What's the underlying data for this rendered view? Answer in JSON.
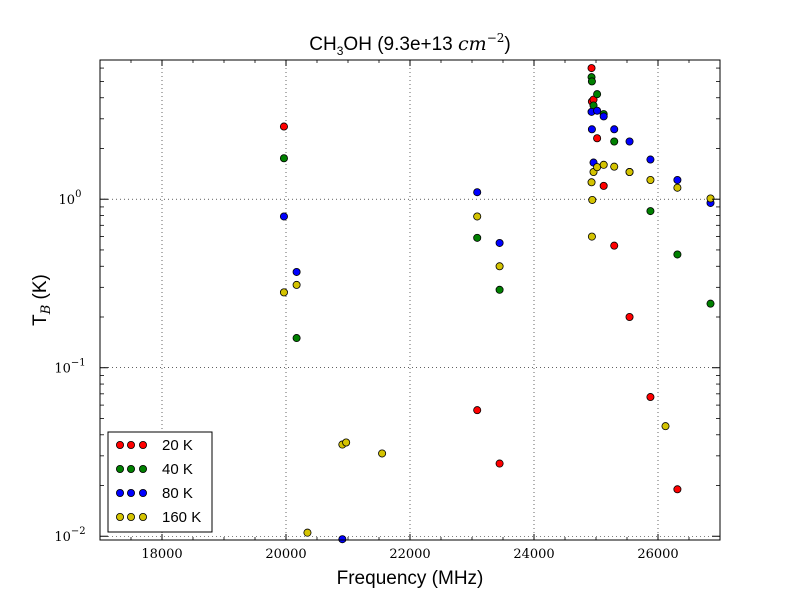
{
  "chart_data": {
    "type": "scatter",
    "title": {
      "species": "CH",
      "sub": "3",
      "rest": "OH (9.3e+13 ",
      "unit": "cm",
      "exp": "−2",
      "close": ")"
    },
    "xlabel": "Frequency (MHz)",
    "ylabel": {
      "main": "T",
      "sub": "B",
      "rest": " (K)"
    },
    "xlim": [
      17000,
      27000
    ],
    "ylim": [
      0.0095,
      6.7
    ],
    "yscale": "log",
    "grid": true,
    "legend_position": "lower-left",
    "x_ticks": [
      18000,
      20000,
      22000,
      24000,
      26000
    ],
    "x_tick_labels": [
      "18000",
      "20000",
      "22000",
      "24000",
      "26000"
    ],
    "y_ticks": [
      0.01,
      0.1,
      1
    ],
    "y_tick_labels": [
      {
        "base": "10",
        "exp": "−2"
      },
      {
        "base": "10",
        "exp": "−1"
      },
      {
        "base": "10",
        "exp": "0"
      }
    ],
    "series": [
      {
        "name": "20 K",
        "color": "#ff0000",
        "points": [
          [
            19967,
            2.7
          ],
          [
            23084,
            0.056
          ],
          [
            23445,
            0.027
          ],
          [
            24928,
            6.0
          ],
          [
            24934,
            3.8
          ],
          [
            24960,
            3.9
          ],
          [
            25018,
            2.3
          ],
          [
            25124,
            1.2
          ],
          [
            25294,
            0.53
          ],
          [
            25541,
            0.2
          ],
          [
            25878,
            0.067
          ],
          [
            26313,
            0.019
          ]
        ]
      },
      {
        "name": "40 K",
        "color": "#008000",
        "points": [
          [
            19967,
            1.75
          ],
          [
            20171,
            0.15
          ],
          [
            23084,
            0.59
          ],
          [
            23445,
            0.29
          ],
          [
            24928,
            5.3
          ],
          [
            24934,
            5.0
          ],
          [
            24960,
            3.6
          ],
          [
            25018,
            4.2
          ],
          [
            25124,
            3.2
          ],
          [
            25294,
            2.2
          ],
          [
            25541,
            1.45
          ],
          [
            25878,
            0.85
          ],
          [
            26313,
            0.47
          ],
          [
            26847,
            0.24
          ]
        ]
      },
      {
        "name": "80 K",
        "color": "#0000ff",
        "points": [
          [
            19967,
            0.79
          ],
          [
            20171,
            0.37
          ],
          [
            20909,
            0.0096
          ],
          [
            23084,
            1.1
          ],
          [
            23445,
            0.55
          ],
          [
            24928,
            3.3
          ],
          [
            24934,
            2.6
          ],
          [
            24960,
            1.65
          ],
          [
            25018,
            3.35
          ],
          [
            25124,
            3.1
          ],
          [
            25294,
            2.6
          ],
          [
            25541,
            2.2
          ],
          [
            25878,
            1.72
          ],
          [
            26313,
            1.3
          ],
          [
            26847,
            0.95
          ]
        ]
      },
      {
        "name": "160 K",
        "color": "#d4c300",
        "points": [
          [
            19967,
            0.28
          ],
          [
            20171,
            0.31
          ],
          [
            20346,
            0.0105
          ],
          [
            20909,
            0.035
          ],
          [
            20970,
            0.036
          ],
          [
            21550,
            0.031
          ],
          [
            23084,
            0.79
          ],
          [
            23445,
            0.4
          ],
          [
            24928,
            1.26
          ],
          [
            24934,
            0.6
          ],
          [
            24940,
            0.99
          ],
          [
            24960,
            1.45
          ],
          [
            25018,
            1.55
          ],
          [
            25124,
            1.6
          ],
          [
            25294,
            1.56
          ],
          [
            25541,
            1.45
          ],
          [
            25878,
            1.3
          ],
          [
            26121,
            0.045
          ],
          [
            26313,
            1.17
          ],
          [
            26847,
            1.01
          ]
        ]
      }
    ]
  }
}
